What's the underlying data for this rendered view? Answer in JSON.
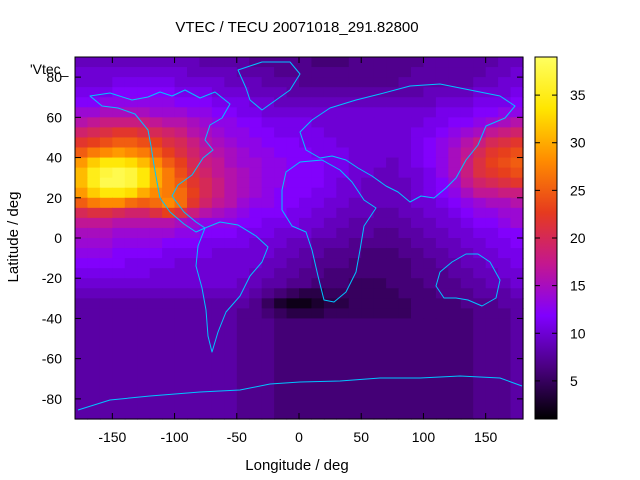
{
  "chart_data": {
    "type": "heatmap",
    "title": "VTEC / TECU 20071018_291.82800",
    "xlabel": "Longitude / deg",
    "ylabel": "Latitude / deg",
    "key_label": "'Vtec_",
    "xlim": [
      -180,
      180
    ],
    "ylim": [
      -90,
      90
    ],
    "x_ticks": [
      -150,
      -100,
      -50,
      0,
      50,
      100,
      150
    ],
    "y_ticks": [
      -80,
      -60,
      -40,
      -20,
      0,
      20,
      40,
      60,
      80
    ],
    "colorbar": {
      "range": [
        1,
        39
      ],
      "ticks": [
        5,
        10,
        15,
        20,
        25,
        30,
        35
      ],
      "palette": [
        "#000000",
        "#4a0080",
        "#8000ff",
        "#c4178f",
        "#e63b1e",
        "#ff8c00",
        "#ffe600",
        "#ffff60"
      ]
    },
    "grid": {
      "lat_step": 5,
      "lon_step": 10,
      "description": "rows from lat 90 down to -90, columns from lon -180 to 180, values in TECU",
      "rows": [
        [
          9,
          9,
          9,
          9,
          9,
          9,
          9,
          9,
          9,
          9,
          8,
          8,
          8,
          8,
          7,
          7,
          7,
          7,
          7,
          6,
          6,
          6,
          7,
          7,
          7,
          7,
          7,
          7,
          8,
          8,
          8,
          8,
          8,
          8,
          9,
          9
        ],
        [
          10,
          10,
          10,
          10,
          10,
          10,
          10,
          10,
          10,
          9,
          9,
          9,
          9,
          8,
          8,
          8,
          7,
          7,
          7,
          7,
          7,
          7,
          7,
          7,
          7,
          7,
          7,
          8,
          8,
          8,
          8,
          8,
          8,
          9,
          9,
          10
        ],
        [
          10,
          10,
          10,
          11,
          11,
          11,
          11,
          11,
          10,
          10,
          10,
          10,
          9,
          9,
          9,
          8,
          8,
          8,
          7,
          7,
          7,
          7,
          7,
          7,
          7,
          7,
          8,
          8,
          8,
          8,
          8,
          8,
          9,
          9,
          10,
          10
        ],
        [
          11,
          11,
          11,
          12,
          12,
          12,
          12,
          12,
          11,
          11,
          11,
          10,
          10,
          10,
          9,
          9,
          9,
          8,
          8,
          8,
          8,
          8,
          8,
          8,
          8,
          8,
          8,
          8,
          9,
          9,
          9,
          9,
          10,
          10,
          10,
          11
        ],
        [
          12,
          12,
          13,
          13,
          13,
          13,
          13,
          13,
          12,
          12,
          12,
          11,
          11,
          11,
          10,
          10,
          9,
          9,
          9,
          9,
          9,
          9,
          9,
          9,
          9,
          9,
          9,
          9,
          9,
          10,
          10,
          10,
          11,
          11,
          11,
          12
        ],
        [
          14,
          14,
          15,
          15,
          15,
          15,
          14,
          14,
          14,
          13,
          13,
          12,
          12,
          11,
          11,
          10,
          10,
          10,
          10,
          10,
          10,
          10,
          10,
          10,
          10,
          10,
          10,
          10,
          10,
          11,
          11,
          11,
          12,
          12,
          13,
          13
        ],
        [
          16,
          17,
          18,
          18,
          18,
          18,
          17,
          16,
          16,
          15,
          14,
          13,
          13,
          12,
          12,
          11,
          11,
          11,
          11,
          10,
          10,
          10,
          10,
          10,
          10,
          10,
          10,
          10,
          11,
          11,
          12,
          12,
          13,
          14,
          15,
          16
        ],
        [
          19,
          20,
          21,
          22,
          22,
          21,
          20,
          19,
          18,
          16,
          15,
          14,
          13,
          13,
          12,
          12,
          11,
          11,
          11,
          11,
          10,
          10,
          10,
          10,
          10,
          10,
          10,
          11,
          11,
          12,
          13,
          14,
          15,
          17,
          18,
          19
        ],
        [
          22,
          23,
          24,
          25,
          25,
          24,
          23,
          21,
          20,
          18,
          16,
          15,
          14,
          13,
          13,
          12,
          12,
          12,
          11,
          11,
          11,
          10,
          10,
          10,
          10,
          10,
          10,
          11,
          12,
          13,
          14,
          16,
          18,
          20,
          21,
          22
        ],
        [
          25,
          27,
          28,
          29,
          28,
          27,
          25,
          23,
          21,
          19,
          17,
          16,
          15,
          14,
          13,
          13,
          12,
          12,
          12,
          11,
          11,
          11,
          10,
          10,
          10,
          10,
          10,
          11,
          12,
          13,
          15,
          17,
          20,
          22,
          23,
          24
        ],
        [
          29,
          32,
          34,
          34,
          33,
          31,
          28,
          25,
          23,
          20,
          18,
          17,
          15,
          14,
          14,
          13,
          13,
          12,
          12,
          12,
          11,
          11,
          10,
          10,
          10,
          9,
          10,
          11,
          12,
          13,
          15,
          18,
          21,
          23,
          24,
          25
        ],
        [
          31,
          35,
          37,
          38,
          37,
          34,
          30,
          27,
          24,
          21,
          19,
          17,
          16,
          15,
          14,
          13,
          13,
          12,
          12,
          12,
          11,
          11,
          10,
          10,
          9,
          9,
          10,
          10,
          11,
          13,
          15,
          18,
          21,
          22,
          23,
          24
        ],
        [
          31,
          35,
          38,
          38,
          37,
          34,
          30,
          27,
          25,
          22,
          20,
          18,
          16,
          15,
          14,
          13,
          13,
          12,
          12,
          12,
          11,
          10,
          10,
          9,
          9,
          9,
          9,
          10,
          11,
          12,
          14,
          17,
          19,
          20,
          21,
          22
        ],
        [
          29,
          32,
          34,
          34,
          33,
          30,
          28,
          27,
          26,
          23,
          20,
          18,
          16,
          15,
          14,
          13,
          12,
          12,
          12,
          11,
          11,
          10,
          10,
          9,
          9,
          9,
          9,
          10,
          11,
          12,
          13,
          15,
          17,
          17,
          18,
          18
        ],
        [
          25,
          27,
          28,
          28,
          26,
          25,
          26,
          28,
          26,
          22,
          19,
          17,
          16,
          14,
          13,
          13,
          12,
          12,
          11,
          11,
          10,
          10,
          9,
          9,
          9,
          9,
          9,
          10,
          10,
          11,
          12,
          13,
          14,
          15,
          15,
          16
        ],
        [
          20,
          21,
          21,
          20,
          19,
          19,
          21,
          23,
          21,
          18,
          16,
          15,
          14,
          13,
          12,
          12,
          12,
          11,
          11,
          10,
          10,
          9,
          9,
          9,
          8,
          8,
          9,
          9,
          10,
          10,
          11,
          12,
          13,
          13,
          14,
          14
        ],
        [
          17,
          17,
          17,
          16,
          16,
          16,
          16,
          16,
          15,
          14,
          13,
          13,
          13,
          12,
          12,
          11,
          11,
          11,
          10,
          10,
          9,
          9,
          8,
          8,
          8,
          8,
          8,
          9,
          9,
          10,
          10,
          11,
          12,
          12,
          13,
          14
        ],
        [
          15,
          15,
          15,
          14,
          14,
          14,
          14,
          14,
          13,
          13,
          12,
          12,
          12,
          11,
          11,
          11,
          10,
          10,
          10,
          9,
          9,
          8,
          8,
          8,
          7,
          7,
          8,
          8,
          9,
          9,
          10,
          10,
          11,
          11,
          12,
          12
        ],
        [
          14,
          14,
          14,
          13,
          13,
          13,
          13,
          12,
          12,
          12,
          11,
          11,
          11,
          11,
          10,
          10,
          10,
          9,
          9,
          8,
          8,
          8,
          7,
          7,
          7,
          7,
          7,
          8,
          8,
          9,
          9,
          10,
          10,
          11,
          11,
          12
        ],
        [
          13,
          13,
          13,
          12,
          12,
          12,
          12,
          11,
          11,
          11,
          11,
          10,
          10,
          10,
          10,
          10,
          9,
          9,
          8,
          8,
          7,
          7,
          7,
          6,
          6,
          6,
          7,
          7,
          8,
          8,
          9,
          9,
          10,
          10,
          11,
          11
        ],
        [
          12,
          12,
          12,
          12,
          11,
          11,
          11,
          11,
          10,
          10,
          10,
          10,
          10,
          10,
          10,
          9,
          9,
          8,
          8,
          7,
          7,
          7,
          6,
          6,
          6,
          6,
          6,
          7,
          7,
          8,
          8,
          9,
          9,
          10,
          10,
          11
        ],
        [
          11,
          11,
          11,
          11,
          11,
          11,
          10,
          10,
          10,
          10,
          10,
          10,
          10,
          10,
          9,
          9,
          8,
          8,
          7,
          7,
          6,
          6,
          6,
          6,
          6,
          6,
          6,
          7,
          7,
          7,
          8,
          8,
          9,
          9,
          10,
          10
        ],
        [
          10,
          10,
          10,
          10,
          10,
          10,
          10,
          10,
          10,
          10,
          10,
          10,
          10,
          9,
          9,
          8,
          8,
          7,
          7,
          6,
          6,
          6,
          5,
          5,
          5,
          6,
          6,
          6,
          7,
          7,
          7,
          8,
          8,
          9,
          9,
          10
        ],
        [
          9,
          9,
          9,
          9,
          9,
          9,
          9,
          9,
          9,
          9,
          9,
          9,
          9,
          9,
          8,
          7,
          6,
          5,
          4,
          4,
          5,
          5,
          5,
          5,
          5,
          5,
          6,
          6,
          6,
          7,
          7,
          7,
          8,
          8,
          8,
          9
        ],
        [
          8,
          8,
          8,
          8,
          8,
          8,
          8,
          8,
          8,
          8,
          8,
          8,
          8,
          8,
          7,
          5,
          3,
          2,
          2,
          3,
          4,
          4,
          5,
          5,
          5,
          5,
          5,
          6,
          6,
          6,
          6,
          7,
          7,
          7,
          8,
          8
        ],
        [
          8,
          8,
          8,
          8,
          8,
          8,
          8,
          8,
          8,
          8,
          8,
          8,
          8,
          7,
          7,
          6,
          5,
          4,
          4,
          4,
          5,
          5,
          5,
          5,
          5,
          5,
          5,
          6,
          6,
          6,
          6,
          6,
          7,
          7,
          7,
          8
        ],
        [
          8,
          8,
          8,
          8,
          8,
          8,
          8,
          8,
          8,
          8,
          8,
          8,
          8,
          7,
          7,
          7,
          6,
          6,
          6,
          6,
          6,
          6,
          6,
          6,
          6,
          6,
          6,
          6,
          6,
          6,
          6,
          6,
          7,
          7,
          7,
          8
        ]
      ]
    }
  }
}
